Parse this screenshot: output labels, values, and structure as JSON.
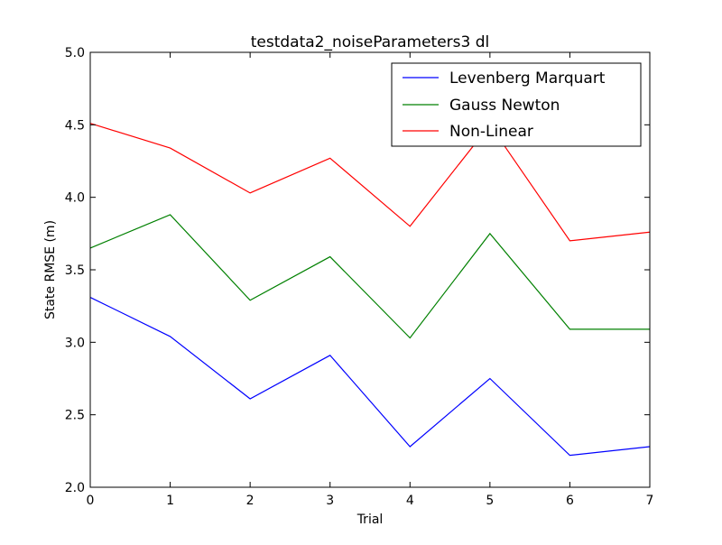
{
  "chart_data": {
    "type": "line",
    "title": "testdata2_noiseParameters3 dl",
    "xlabel": "Trial",
    "ylabel": "State RMSE (m)",
    "x": [
      0,
      1,
      2,
      3,
      4,
      5,
      6,
      7
    ],
    "xlim": [
      0,
      7
    ],
    "ylim": [
      2.0,
      5.0
    ],
    "xticks": [
      0,
      1,
      2,
      3,
      4,
      5,
      6,
      7
    ],
    "xtick_labels": [
      "0",
      "1",
      "2",
      "3",
      "4",
      "5",
      "6",
      "7"
    ],
    "yticks": [
      2.0,
      2.5,
      3.0,
      3.5,
      4.0,
      4.5,
      5.0
    ],
    "ytick_labels": [
      "2.0",
      "2.5",
      "3.0",
      "3.5",
      "4.0",
      "4.5",
      "5.0"
    ],
    "grid": false,
    "legend_position": "top-right",
    "series": [
      {
        "name": "Levenberg Marquart",
        "color": "#0000ff",
        "values": [
          3.31,
          3.04,
          2.61,
          2.91,
          2.28,
          2.75,
          2.22,
          2.28
        ]
      },
      {
        "name": "Gauss Newton",
        "color": "#008000",
        "values": [
          3.65,
          3.88,
          3.29,
          3.59,
          3.03,
          3.75,
          3.09,
          3.09
        ]
      },
      {
        "name": "Non-Linear",
        "color": "#ff0000",
        "values": [
          4.51,
          4.34,
          4.03,
          4.27,
          3.8,
          4.5,
          3.7,
          3.76
        ]
      }
    ]
  }
}
